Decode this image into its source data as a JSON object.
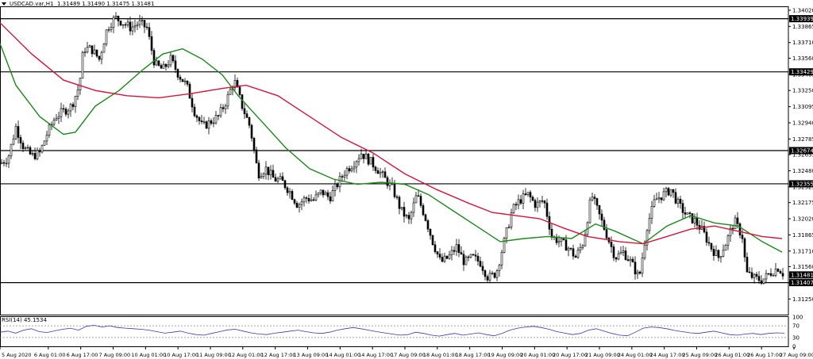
{
  "header": {
    "symbol": "USDCAD.var,H1",
    "ohlc": "1.31489 1.31490 1.31475 1.31481"
  },
  "rsi_label": "RSI(14) 45.1534",
  "colors": {
    "candle": "#000000",
    "ma_fast": "#1a8a1a",
    "ma_slow": "#d6143a",
    "rsi": "#3a3aaa",
    "hline": "#000000",
    "price_tag_bg": "#000000",
    "price_tag_fg": "#ffffff"
  },
  "chart_data": [
    {
      "type": "candlestick",
      "title": "USDCAD.var,H1",
      "ylim": [
        1.311,
        1.3405
      ],
      "y_ticks": [
        "1.34020",
        "1.33865",
        "1.33710",
        "1.33560",
        "1.33405",
        "1.33250",
        "1.33095",
        "1.32940",
        "1.32785",
        "1.32635",
        "1.32480",
        "1.32325",
        "1.32175",
        "1.32020",
        "1.31865",
        "1.31710",
        "1.31560",
        "1.31405",
        "1.31250"
      ],
      "x_ticks": [
        "5 Aug 2020",
        "6 Aug 01:00",
        "6 Aug 17:00",
        "7 Aug 09:00",
        "10 Aug 01:00",
        "10 Aug 17:00",
        "11 Aug 09:00",
        "12 Aug 01:00",
        "12 Aug 17:00",
        "13 Aug 09:00",
        "14 Aug 01:00",
        "14 Aug 17:00",
        "17 Aug 09:00",
        "18 Aug 01:00",
        "18 Aug 17:00",
        "19 Aug 09:00",
        "20 Aug 01:00",
        "20 Aug 17:00",
        "21 Aug 09:00",
        "24 Aug 01:00",
        "24 Aug 17:00",
        "25 Aug 09:00",
        "26 Aug 01:00",
        "26 Aug 17:00",
        "27 Aug 09:00"
      ],
      "horizontal_levels": [
        "1.33939",
        "1.33429",
        "1.32674",
        "1.32355",
        "1.31407"
      ],
      "current_price": "1.31481",
      "price_path": [
        [
          0,
          1.3255
        ],
        [
          10,
          1.326
        ],
        [
          20,
          1.329
        ],
        [
          30,
          1.327
        ],
        [
          40,
          1.3262
        ],
        [
          50,
          1.3265
        ],
        [
          60,
          1.3285
        ],
        [
          70,
          1.33
        ],
        [
          80,
          1.3305
        ],
        [
          90,
          1.331
        ],
        [
          100,
          1.333
        ],
        [
          105,
          1.3365
        ],
        [
          115,
          1.3365
        ],
        [
          125,
          1.3355
        ],
        [
          135,
          1.3385
        ],
        [
          145,
          1.3395
        ],
        [
          155,
          1.339
        ],
        [
          165,
          1.3385
        ],
        [
          175,
          1.339
        ],
        [
          185,
          1.3385
        ],
        [
          195,
          1.335
        ],
        [
          205,
          1.3345
        ],
        [
          215,
          1.3355
        ],
        [
          225,
          1.334
        ],
        [
          235,
          1.333
        ],
        [
          245,
          1.3305
        ],
        [
          255,
          1.329
        ],
        [
          265,
          1.3295
        ],
        [
          275,
          1.33
        ],
        [
          285,
          1.3315
        ],
        [
          295,
          1.3335
        ],
        [
          305,
          1.331
        ],
        [
          315,
          1.329
        ],
        [
          325,
          1.3245
        ],
        [
          335,
          1.325
        ],
        [
          345,
          1.324
        ],
        [
          355,
          1.3238
        ],
        [
          365,
          1.3228
        ],
        [
          375,
          1.3215
        ],
        [
          385,
          1.3222
        ],
        [
          395,
          1.322
        ],
        [
          405,
          1.3228
        ],
        [
          415,
          1.3222
        ],
        [
          425,
          1.3235
        ],
        [
          435,
          1.3248
        ],
        [
          445,
          1.3255
        ],
        [
          455,
          1.3265
        ],
        [
          465,
          1.3258
        ],
        [
          475,
          1.325
        ],
        [
          485,
          1.324
        ],
        [
          495,
          1.323
        ],
        [
          505,
          1.321
        ],
        [
          515,
          1.32
        ],
        [
          525,
          1.3225
        ],
        [
          535,
          1.3205
        ],
        [
          545,
          1.318
        ],
        [
          555,
          1.316
        ],
        [
          565,
          1.3165
        ],
        [
          575,
          1.3175
        ],
        [
          585,
          1.316
        ],
        [
          595,
          1.3165
        ],
        [
          605,
          1.316
        ],
        [
          615,
          1.3145
        ],
        [
          625,
          1.315
        ],
        [
          635,
          1.318
        ],
        [
          645,
          1.321
        ],
        [
          655,
          1.322
        ],
        [
          665,
          1.3225
        ],
        [
          675,
          1.3215
        ],
        [
          685,
          1.322
        ],
        [
          695,
          1.3185
        ],
        [
          705,
          1.318
        ],
        [
          715,
          1.3175
        ],
        [
          725,
          1.3165
        ],
        [
          735,
          1.318
        ],
        [
          745,
          1.3225
        ],
        [
          755,
          1.3205
        ],
        [
          765,
          1.3185
        ],
        [
          775,
          1.3165
        ],
        [
          785,
          1.317
        ],
        [
          795,
          1.316
        ],
        [
          805,
          1.3145
        ],
        [
          815,
          1.3195
        ],
        [
          825,
          1.322
        ],
        [
          835,
          1.3225
        ],
        [
          845,
          1.323
        ],
        [
          855,
          1.3215
        ],
        [
          865,
          1.3205
        ],
        [
          875,
          1.32
        ],
        [
          885,
          1.319
        ],
        [
          895,
          1.3175
        ],
        [
          905,
          1.3165
        ],
        [
          915,
          1.318
        ],
        [
          925,
          1.32
        ],
        [
          935,
          1.3185
        ],
        [
          940,
          1.315
        ],
        [
          950,
          1.3145
        ],
        [
          960,
          1.3143
        ],
        [
          970,
          1.315
        ],
        [
          980,
          1.3155
        ],
        [
          988,
          1.3148
        ]
      ],
      "series": [
        {
          "name": "ma_fast",
          "path": [
            [
              0,
              1.337
            ],
            [
              20,
              1.333
            ],
            [
              50,
              1.33
            ],
            [
              80,
              1.3283
            ],
            [
              95,
              1.3285
            ],
            [
              120,
              1.331
            ],
            [
              150,
              1.3325
            ],
            [
              180,
              1.3345
            ],
            [
              205,
              1.336
            ],
            [
              230,
              1.3365
            ],
            [
              255,
              1.3355
            ],
            [
              280,
              1.334
            ],
            [
              300,
              1.332
            ],
            [
              330,
              1.3295
            ],
            [
              360,
              1.327
            ],
            [
              390,
              1.325
            ],
            [
              420,
              1.324
            ],
            [
              450,
              1.3235
            ],
            [
              480,
              1.3237
            ],
            [
              510,
              1.3235
            ],
            [
              540,
              1.3225
            ],
            [
              570,
              1.321
            ],
            [
              600,
              1.3195
            ],
            [
              630,
              1.318
            ],
            [
              660,
              1.3183
            ],
            [
              690,
              1.3185
            ],
            [
              720,
              1.3183
            ],
            [
              750,
              1.3197
            ],
            [
              775,
              1.319
            ],
            [
              810,
              1.3178
            ],
            [
              840,
              1.3195
            ],
            [
              870,
              1.3205
            ],
            [
              900,
              1.3198
            ],
            [
              930,
              1.3195
            ],
            [
              960,
              1.318
            ],
            [
              985,
              1.317
            ]
          ]
        },
        {
          "name": "ma_slow",
          "path": [
            [
              0,
              1.339
            ],
            [
              40,
              1.336
            ],
            [
              80,
              1.3335
            ],
            [
              120,
              1.3325
            ],
            [
              160,
              1.332
            ],
            [
              200,
              1.3318
            ],
            [
              240,
              1.3322
            ],
            [
              280,
              1.3327
            ],
            [
              310,
              1.333
            ],
            [
              350,
              1.332
            ],
            [
              390,
              1.33
            ],
            [
              430,
              1.328
            ],
            [
              470,
              1.3265
            ],
            [
              510,
              1.3245
            ],
            [
              550,
              1.323
            ],
            [
              590,
              1.3217
            ],
            [
              620,
              1.3208
            ],
            [
              650,
              1.3205
            ],
            [
              680,
              1.3202
            ],
            [
              710,
              1.3193
            ],
            [
              740,
              1.3185
            ],
            [
              780,
              1.318
            ],
            [
              810,
              1.3178
            ],
            [
              840,
              1.3185
            ],
            [
              870,
              1.3192
            ],
            [
              900,
              1.3195
            ],
            [
              930,
              1.319
            ],
            [
              960,
              1.3185
            ],
            [
              985,
              1.3183
            ]
          ]
        }
      ]
    },
    {
      "type": "line",
      "title": "RSI(14) 45.1534",
      "ylim": [
        0,
        100
      ],
      "y_ticks": [
        "100",
        "70",
        "30",
        "0"
      ],
      "levels": [
        70,
        30
      ],
      "series": [
        {
          "name": "RSI(14)",
          "values": [
            48,
            52,
            45,
            55,
            60,
            50,
            47,
            53,
            58,
            62,
            55,
            68,
            72,
            66,
            70,
            64,
            62,
            60,
            58,
            55,
            50,
            45,
            48,
            52,
            45,
            40,
            38,
            44,
            50,
            56,
            58,
            52,
            46,
            42,
            40,
            45,
            48,
            52,
            55,
            50,
            46,
            44,
            48,
            55,
            60,
            64,
            60,
            55,
            50,
            46,
            42,
            38,
            40,
            48,
            44,
            38,
            35,
            40,
            44,
            38,
            42,
            46,
            40,
            36,
            44,
            55,
            62,
            66,
            68,
            64,
            58,
            50,
            45,
            40,
            44,
            55,
            60,
            52,
            44,
            38,
            36,
            48,
            62,
            66,
            64,
            60,
            54,
            50,
            46,
            44,
            48,
            52,
            46,
            40,
            38,
            42,
            44,
            40,
            44,
            46,
            45
          ]
        }
      ]
    }
  ]
}
